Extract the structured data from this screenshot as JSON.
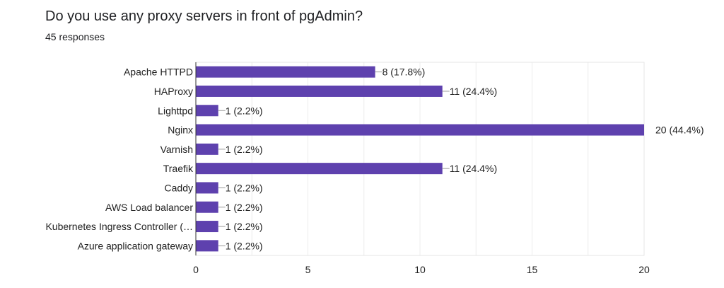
{
  "chart_data": {
    "type": "bar",
    "orientation": "horizontal",
    "title": "Do you use any proxy servers in front of pgAdmin?",
    "subtitle": "45 responses",
    "categories": [
      "Apache HTTPD",
      "HAProxy",
      "Lighttpd",
      "Nginx",
      "Varnish",
      "Traefik",
      "Caddy",
      "AWS Load balancer",
      "Kubernetes Ingress Controller (…",
      "Azure application gateway"
    ],
    "values": [
      8,
      11,
      1,
      20,
      1,
      11,
      1,
      1,
      1,
      1
    ],
    "data_labels": [
      "8 (17.8%)",
      "11 (24.4%)",
      "1 (2.2%)",
      "20 (44.4%)",
      "1 (2.2%)",
      "11 (24.4%)",
      "1 (2.2%)",
      "1 (2.2%)",
      "1 (2.2%)",
      "1 (2.2%)"
    ],
    "xlim": [
      0,
      20
    ],
    "xticks": [
      0,
      5,
      10,
      15,
      20
    ],
    "xlabel": "",
    "ylabel": "",
    "grid": true,
    "bar_color": "#5e41ae"
  }
}
